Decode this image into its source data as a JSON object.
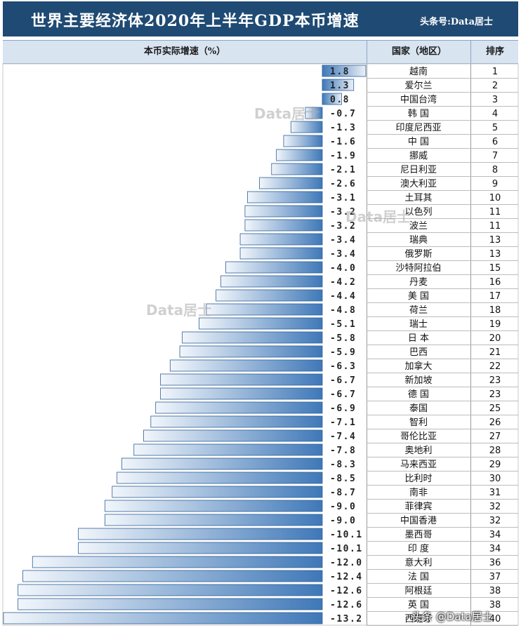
{
  "title": "世界主要经济体2020年上半年GDP本币增速",
  "source": "头条号:Data居士",
  "headers": {
    "growth": "本币实际增速（%）",
    "country": "国家（地区）",
    "rank": "排序"
  },
  "watermark": "Data居士",
  "footer_brand": "头条 @Data居士",
  "colors": {
    "title_bg": "#1f4a73",
    "bar_dark": "#3f78b8",
    "bar_light": "#f2f6fb",
    "header_bg": "#d9e4f1"
  },
  "chart_data": {
    "type": "bar",
    "orientation": "horizontal",
    "categories": [
      "越南",
      "爱尔兰",
      "中国台湾",
      "韩 国",
      "印度尼西亚",
      "中 国",
      "挪威",
      "尼日利亚",
      "澳大利亚",
      "土耳其",
      "以色列",
      "波兰",
      "瑞典",
      "俄罗斯",
      "沙特阿拉伯",
      "丹麦",
      "美 国",
      "荷兰",
      "瑞士",
      "日 本",
      "巴西",
      "加拿大",
      "新加坡",
      "德 国",
      "泰国",
      "智利",
      "哥伦比亚",
      "奥地利",
      "马来西亚",
      "比利时",
      "南非",
      "菲律宾",
      "中国香港",
      "墨西哥",
      "印 度",
      "意大利",
      "法 国",
      "阿根廷",
      "英 国",
      "西班牙"
    ],
    "value_labels": [
      "1.8",
      "1.3",
      "0.8",
      "-0.7",
      "-1.3",
      "-1.6",
      "-1.9",
      "-2.1",
      "-2.6",
      "-3.1",
      "-3.2",
      "-3.2",
      "-3.4",
      "-3.4",
      "-4.0",
      "-4.2",
      "-4.4",
      "-4.8",
      "-5.1",
      "-5.8",
      "-5.9",
      "-6.3",
      "-6.7",
      "-6.7",
      "-6.9",
      "-7.1",
      "-7.4",
      "-7.8",
      "-8.3",
      "-8.5",
      "-8.7",
      "-9.0",
      "-9.0",
      "-10.1",
      "-10.1",
      "-12.0",
      "-12.4",
      "-12.6",
      "-12.6",
      "-13.2"
    ],
    "values": [
      1.8,
      1.3,
      0.8,
      -0.7,
      -1.3,
      -1.6,
      -1.9,
      -2.1,
      -2.6,
      -3.1,
      -3.2,
      -3.2,
      -3.4,
      -3.4,
      -4.0,
      -4.2,
      -4.4,
      -4.8,
      -5.1,
      -5.8,
      -5.9,
      -6.3,
      -6.7,
      -6.7,
      -6.9,
      -7.1,
      -7.4,
      -7.8,
      -8.3,
      -8.5,
      -8.7,
      -9.0,
      -9.0,
      -10.1,
      -10.1,
      -12.0,
      -12.4,
      -12.6,
      -12.6,
      -13.2
    ],
    "ranks": [
      "1",
      "2",
      "3",
      "4",
      "5",
      "6",
      "7",
      "8",
      "9",
      "10",
      "11",
      "11",
      "13",
      "13",
      "15",
      "16",
      "17",
      "18",
      "19",
      "20",
      "21",
      "22",
      "23",
      "23",
      "25",
      "26",
      "27",
      "28",
      "29",
      "30",
      "31",
      "32",
      "32",
      "34",
      "34",
      "36",
      "37",
      "38",
      "38",
      "40"
    ],
    "ylabel": "本币实际增速（%）",
    "xlim": [
      -13.2,
      1.8
    ]
  }
}
